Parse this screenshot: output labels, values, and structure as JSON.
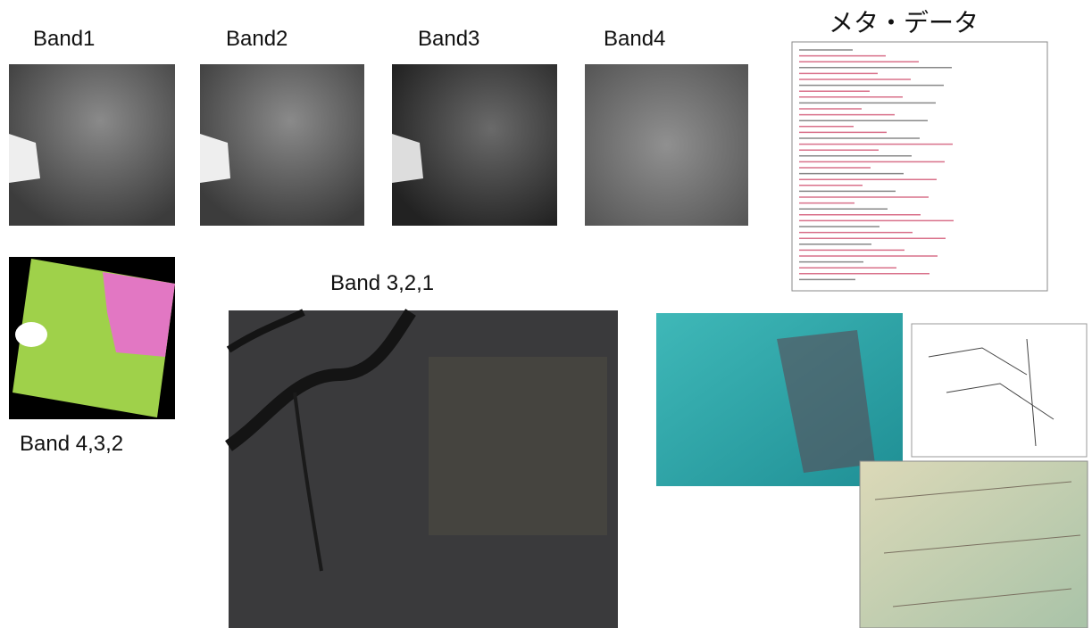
{
  "bands": [
    {
      "label": "Band1"
    },
    {
      "label": "Band2"
    },
    {
      "label": "Band3"
    },
    {
      "label": "Band4"
    }
  ],
  "metadata": {
    "title": "メタ・データ"
  },
  "composites": [
    {
      "label": "Band 4,3,2"
    },
    {
      "label": "Band 3,2,1"
    }
  ]
}
